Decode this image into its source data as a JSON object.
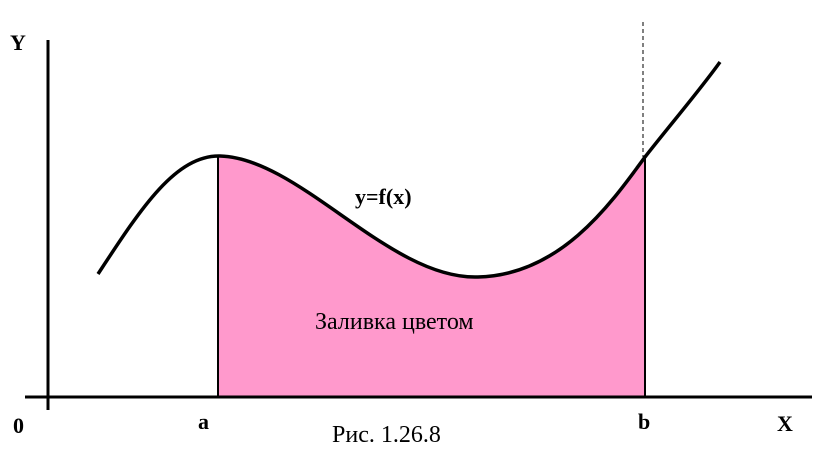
{
  "axis_labels": {
    "y": "Y",
    "x": "X",
    "origin": "0"
  },
  "bounds": {
    "a": "a",
    "b": "b"
  },
  "curve_label": "y=f(x)",
  "fill_label": "Заливка цветом",
  "caption": "Рис. 1.26.8"
}
